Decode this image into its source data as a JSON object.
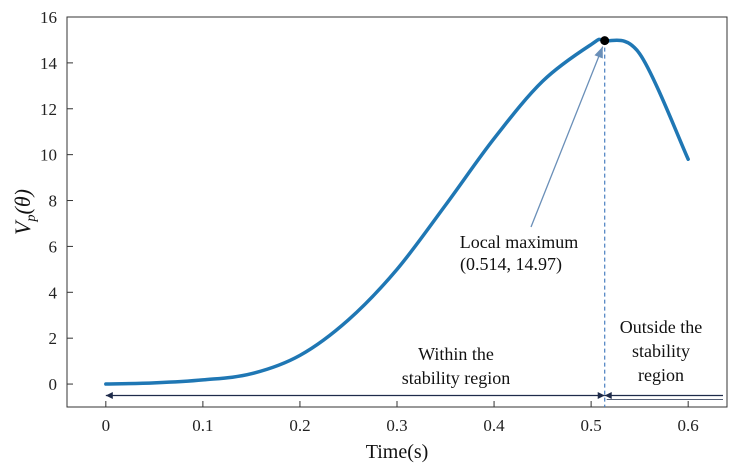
{
  "chart_data": {
    "type": "line",
    "title": "",
    "xlabel": "Time(s)",
    "ylabel": {
      "main": "V",
      "sub": "p",
      "arg": "(θ)"
    },
    "xlim": [
      -0.04,
      0.64
    ],
    "ylim": [
      -1,
      16
    ],
    "xticks": [
      0,
      0.1,
      0.2,
      0.3,
      0.4,
      0.5,
      0.6
    ],
    "xtick_labels": [
      "0",
      "0.1",
      "0.2",
      "0.3",
      "0.4",
      "0.5",
      "0.6"
    ],
    "yticks": [
      0,
      2,
      4,
      6,
      8,
      10,
      12,
      14,
      16
    ],
    "ytick_labels": [
      "0",
      "2",
      "4",
      "6",
      "8",
      "10",
      "12",
      "14",
      "16"
    ],
    "grid": false,
    "series": [
      {
        "color": "#1f77b4",
        "x": [
          0,
          0.05,
          0.1,
          0.15,
          0.2,
          0.25,
          0.3,
          0.35,
          0.4,
          0.45,
          0.5,
          0.514,
          0.55,
          0.6
        ],
        "y": [
          0,
          0.05,
          0.18,
          0.45,
          1.25,
          2.8,
          5.0,
          7.8,
          10.7,
          13.2,
          14.8,
          14.97,
          14.4,
          9.8
        ]
      }
    ],
    "max_point": {
      "x": 0.514,
      "y": 14.97,
      "color": "#000000"
    },
    "annotations": {
      "max_label_line1": "Local maximum",
      "max_label_line2": "(0.514, 14.97)",
      "within_line1": "Within the",
      "within_line2": "stability region",
      "outside_line1": "Outside the",
      "outside_line2": "stability",
      "outside_line3": "region"
    },
    "region_boundary_x": 0.514,
    "region_arrow_y": -0.5,
    "colors": {
      "curve": "#1f77b4",
      "annotation_arrow": "#6a8fb8",
      "boundary": "#4a7fc0",
      "region_arrow": "#1e2b4a"
    }
  }
}
